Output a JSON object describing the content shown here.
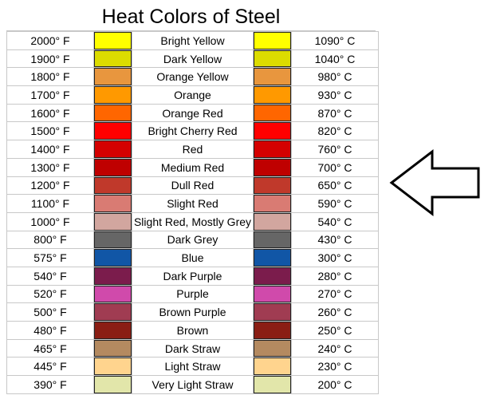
{
  "title": "Heat Colors of Steel",
  "rows": [
    {
      "f": "2000° F",
      "name": "Bright Yellow",
      "c": "1090° C",
      "color": "#ffff00"
    },
    {
      "f": "1900° F",
      "name": "Dark Yellow",
      "c": "1040° C",
      "color": "#dcdc00"
    },
    {
      "f": "1800° F",
      "name": "Orange Yellow",
      "c": "980° C",
      "color": "#e8963e"
    },
    {
      "f": "1700° F",
      "name": "Orange",
      "c": "930° C",
      "color": "#ff9900"
    },
    {
      "f": "1600° F",
      "name": "Orange Red",
      "c": "870° C",
      "color": "#ff6600"
    },
    {
      "f": "1500° F",
      "name": "Bright Cherry Red",
      "c": "820° C",
      "color": "#ff0000"
    },
    {
      "f": "1400° F",
      "name": "Red",
      "c": "760° C",
      "color": "#d40000"
    },
    {
      "f": "1300° F",
      "name": "Medium Red",
      "c": "700° C",
      "color": "#bf0000"
    },
    {
      "f": "1200° F",
      "name": "Dull Red",
      "c": "650° C",
      "color": "#c0392b"
    },
    {
      "f": "1100° F",
      "name": "Slight Red",
      "c": "590° C",
      "color": "#d97b73"
    },
    {
      "f": "1000° F",
      "name": "Slight Red, Mostly Grey",
      "c": "540° C",
      "color": "#d2a69f"
    },
    {
      "f": "800° F",
      "name": "Dark Grey",
      "c": "430° C",
      "color": "#666666"
    },
    {
      "f": "575° F",
      "name": "Blue",
      "c": "300° C",
      "color": "#1156a6"
    },
    {
      "f": "540° F",
      "name": "Dark Purple",
      "c": "280° C",
      "color": "#7b1c4c"
    },
    {
      "f": "520° F",
      "name": "Purple",
      "c": "270° C",
      "color": "#d04aab"
    },
    {
      "f": "500° F",
      "name": "Brown Purple",
      "c": "260° C",
      "color": "#a03c52"
    },
    {
      "f": "480° F",
      "name": "Brown",
      "c": "250° C",
      "color": "#8a1e14"
    },
    {
      "f": "465° F",
      "name": "Dark Straw",
      "c": "240° C",
      "color": "#b48a60"
    },
    {
      "f": "445° F",
      "name": "Light Straw",
      "c": "230° C",
      "color": "#ffd48e"
    },
    {
      "f": "390° F",
      "name": "Very Light Straw",
      "c": "200° C",
      "color": "#e2e6aa"
    }
  ],
  "arrow_icon": "left-arrow-icon"
}
